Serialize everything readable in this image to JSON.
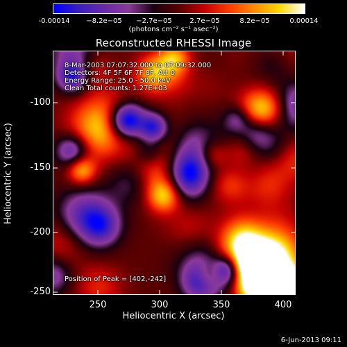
{
  "colorbar": {
    "ticks": [
      "-0.00014",
      "−8.2e−05",
      "−2.7e−05",
      "2.7e−05",
      "8.2e−05",
      "0.00014"
    ],
    "unit": "(photons cm⁻² s⁻¹ asec⁻²)",
    "colors": [
      "#0000ff",
      "#3a1fc0",
      "#6a2aa8",
      "#8a3a9a",
      "#1a0010",
      "#5a0000",
      "#c40000",
      "#ff3a00",
      "#ff8a00",
      "#ffd800",
      "#ffffff"
    ]
  },
  "title": "Reconstructed RHESSI Image",
  "info": {
    "line1": "8-Mar-2003 07:07:32.000 to 07:09:32.000",
    "line2": "Detectors: 4F 5F 6F 7F 8F, Att 0",
    "line3": "Energy Range: 25.0 - 50.0 keV",
    "line4": "Clean     Total counts: 1.27E+03",
    "peak": "Position of Peak = [402,-242]"
  },
  "axes": {
    "xlabel": "Heliocentric X (arcsec)",
    "ylabel": "Heliocentric Y (arcsec)",
    "xticks": [
      "250",
      "300",
      "350",
      "400"
    ],
    "yticks": [
      "-100",
      "-150",
      "-200",
      "-250"
    ]
  },
  "footer": "6-Jun-2013 09:11"
}
